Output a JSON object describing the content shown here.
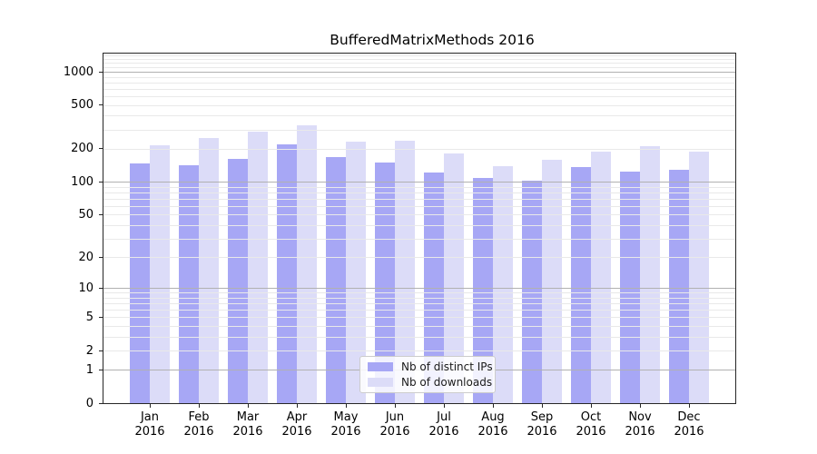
{
  "chart_data": {
    "type": "bar",
    "title": "BufferedMatrixMethods 2016",
    "categories": [
      "Jan",
      "Feb",
      "Mar",
      "Apr",
      "May",
      "Jun",
      "Jul",
      "Aug",
      "Sep",
      "Oct",
      "Nov",
      "Dec"
    ],
    "year": "2016",
    "series": [
      {
        "name": "Nb of distinct IPs",
        "color": "#a7a7f5",
        "values": [
          147,
          141,
          161,
          218,
          168,
          150,
          121,
          108,
          103,
          135,
          125,
          129
        ]
      },
      {
        "name": "Nb of downloads",
        "color": "#dcdcf8",
        "values": [
          217,
          251,
          286,
          324,
          231,
          237,
          180,
          138,
          158,
          190,
          210,
          189
        ]
      }
    ],
    "xlabel": "",
    "ylabel": "",
    "yscale": "log1p",
    "yticks": [
      0,
      1,
      2,
      5,
      10,
      20,
      50,
      100,
      200,
      500,
      1000
    ],
    "grid_major_at": [
      1,
      10,
      100,
      1000
    ],
    "ylim": [
      0,
      1460
    ],
    "grid": "both",
    "legend_position": "lower center"
  }
}
